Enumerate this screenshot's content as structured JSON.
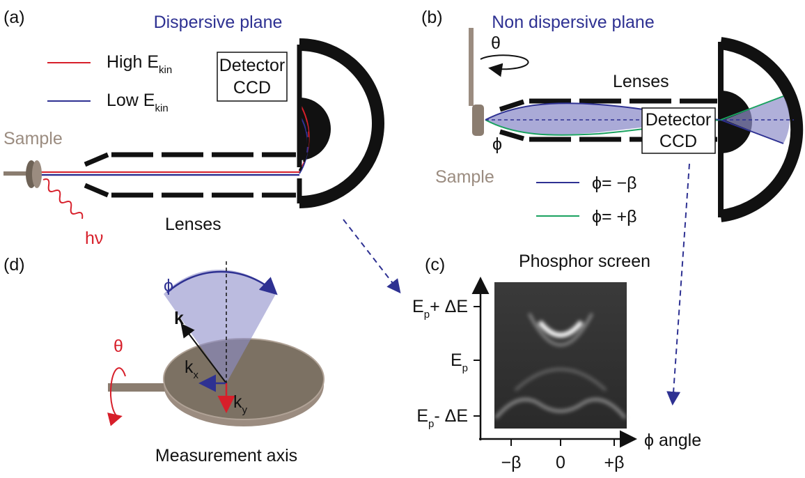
{
  "a": {
    "label": "(a)",
    "title": "Dispersive plane",
    "legend": [
      {
        "text": "High E",
        "sub": "kin"
      },
      {
        "text": "Low E",
        "sub": "kin"
      }
    ],
    "detector": [
      "Detector",
      "CCD"
    ],
    "sample": "Sample",
    "photon": "hν",
    "lenses": "Lenses"
  },
  "b": {
    "label": "(b)",
    "title": "Non dispersive plane",
    "rotation": "θ",
    "lenses": "Lenses",
    "angle": "ϕ",
    "sample": "Sample",
    "detector": [
      "Detector",
      "CCD"
    ],
    "legend": [
      "ϕ= −β",
      "ϕ= +β"
    ]
  },
  "c": {
    "label": "(c)",
    "title": "Phosphor screen",
    "y_labels": [
      {
        "text": "E",
        "sub": "p",
        "rest": "+ ΔE"
      },
      {
        "text": "E",
        "sub": "p"
      },
      {
        "text": "E",
        "sub": "p",
        "rest": "- ΔE"
      }
    ],
    "x_labels": [
      "−β",
      "0",
      "+β"
    ],
    "x_axis": "ϕ angle"
  },
  "d": {
    "label": "(d)",
    "angle": "ϕ",
    "rotation": "θ",
    "k": "k",
    "kx": {
      "text": "k",
      "sub": "x"
    },
    "ky": {
      "text": "k",
      "sub": "y"
    },
    "caption": "Measurement axis"
  }
}
